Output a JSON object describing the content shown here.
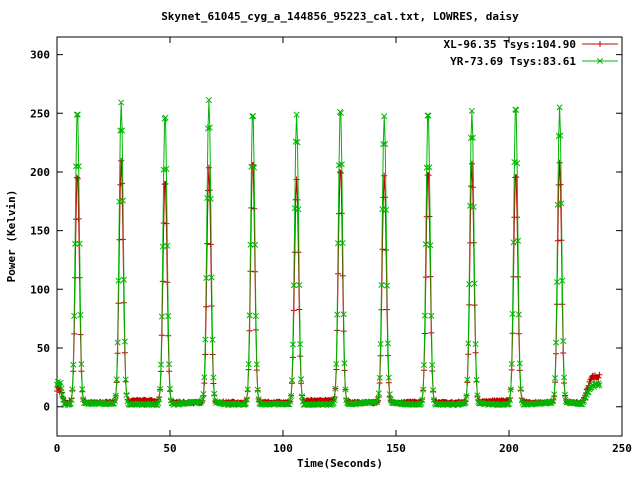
{
  "page": {
    "background": "#ffffff",
    "border_color": "#000000"
  },
  "chart_data": {
    "type": "line",
    "title": "Skynet_61045_cyg_a_144856_95223_cal.txt, LOWRES, daisy",
    "xlabel": "Time(Seconds)",
    "ylabel": "Power (Kelvin)",
    "xlim": [
      0,
      250
    ],
    "ylim": [
      -25,
      315
    ],
    "xticks": [
      0,
      50,
      100,
      150,
      200,
      250
    ],
    "yticks": [
      0,
      50,
      100,
      150,
      200,
      250,
      300
    ],
    "grid": false,
    "legend_position": "top-right-inside",
    "description": "Periodic calibration spikes atop a near-zero baseline; elevated clusters at scan start (t≈0-3s) and scan end (t≈233-240s).",
    "sampling": {
      "t_start": 0,
      "t_end": 240,
      "interval": 0.4,
      "spike_sigma": 0.9
    },
    "peak_times": [
      9,
      28.4,
      47.8,
      67.2,
      86.6,
      106,
      125.4,
      144.8,
      164.2,
      183.6,
      203,
      222.4
    ],
    "series": [
      {
        "name": "XL-96.35 Tsys:104.90",
        "color": "#c00000",
        "marker": "plus",
        "baseline_level": 3.5,
        "start_level": 11,
        "end_level": 21,
        "peak_heights": [
          196,
          205,
          190,
          200,
          207,
          190,
          200,
          193,
          198,
          203,
          196,
          205
        ]
      },
      {
        "name": "YR-73.69 Tsys:83.61",
        "color": "#00b400",
        "marker": "cross",
        "baseline_level": 2.0,
        "start_level": 17,
        "end_level": 16,
        "peak_heights": [
          253,
          257,
          250,
          258,
          252,
          247,
          255,
          243,
          252,
          250,
          257,
          251
        ]
      }
    ]
  }
}
